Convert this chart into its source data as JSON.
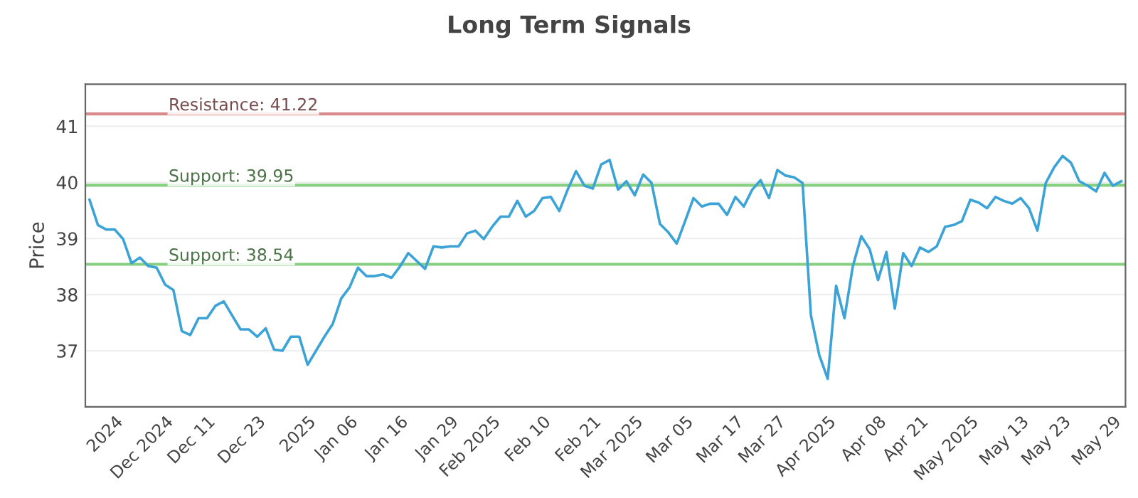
{
  "chart_data": {
    "type": "line",
    "title": "Long Term Signals",
    "ylabel": "Price",
    "categories": [
      null,
      null,
      null,
      "2024",
      null,
      null,
      null,
      null,
      null,
      "Dec 2024",
      null,
      null,
      null,
      null,
      "Dec 11",
      null,
      null,
      null,
      null,
      null,
      "Dec 23",
      null,
      null,
      null,
      null,
      null,
      "2025",
      null,
      null,
      null,
      null,
      "Jan 06",
      null,
      null,
      null,
      null,
      null,
      "Jan 16",
      null,
      null,
      null,
      null,
      null,
      "Jan 29",
      null,
      null,
      null,
      null,
      "Feb 2025",
      null,
      null,
      null,
      null,
      null,
      "Feb 10",
      null,
      null,
      null,
      null,
      null,
      "Feb 21",
      null,
      null,
      null,
      null,
      "Mar 2025",
      null,
      null,
      null,
      null,
      null,
      "Mar 05",
      null,
      null,
      null,
      null,
      null,
      "Mar 17",
      null,
      null,
      null,
      null,
      "Mar 27",
      null,
      null,
      null,
      null,
      null,
      "Apr 2025",
      null,
      null,
      null,
      null,
      null,
      "Apr 08",
      null,
      null,
      null,
      null,
      "Apr 21",
      null,
      null,
      null,
      null,
      null,
      "May 2025",
      null,
      null,
      null,
      null,
      null,
      "May 13",
      null,
      null,
      null,
      null,
      "May 23",
      null,
      null,
      null,
      null,
      null,
      "May 29",
      null
    ],
    "series": [
      {
        "color": "#3ba3d6",
        "values": [
          39.69,
          39.24,
          39.16,
          39.16,
          38.99,
          38.56,
          38.66,
          38.51,
          38.48,
          38.18,
          38.08,
          37.35,
          37.28,
          37.58,
          37.58,
          37.8,
          37.88,
          37.63,
          37.38,
          37.38,
          37.25,
          37.4,
          37.02,
          37.0,
          37.25,
          37.25,
          36.75,
          37.0,
          37.25,
          37.48,
          37.93,
          38.13,
          38.48,
          38.33,
          38.33,
          38.36,
          38.3,
          38.5,
          38.74,
          38.6,
          38.46,
          38.86,
          38.84,
          38.86,
          38.86,
          39.09,
          39.14,
          38.99,
          39.21,
          39.39,
          39.39,
          39.67,
          39.39,
          39.49,
          39.72,
          39.74,
          39.49,
          39.87,
          40.2,
          39.94,
          39.89,
          40.32,
          40.4,
          39.87,
          40.02,
          39.77,
          40.14,
          39.99,
          39.26,
          39.11,
          38.91,
          39.31,
          39.72,
          39.57,
          39.62,
          39.62,
          39.42,
          39.74,
          39.57,
          39.87,
          40.04,
          39.72,
          40.22,
          40.12,
          40.09,
          39.99,
          37.63,
          36.92,
          36.5,
          38.16,
          37.58,
          38.51,
          39.04,
          38.81,
          38.26,
          38.76,
          37.75,
          38.74,
          38.51,
          38.84,
          38.76,
          38.86,
          39.21,
          39.24,
          39.31,
          39.69,
          39.64,
          39.54,
          39.74,
          39.67,
          39.62,
          39.72,
          39.54,
          39.14,
          39.99,
          40.27,
          40.47,
          40.35,
          40.02,
          39.94,
          39.84,
          40.17,
          39.94,
          40.02
        ]
      }
    ],
    "ylim": [
      36,
      41.75
    ],
    "yticks": [
      37,
      38,
      39,
      40,
      41
    ],
    "grid": "y",
    "marker": "none",
    "line_style": "solid",
    "ref_lines": [
      {
        "axis": "y",
        "value": 41.22,
        "label": "Resistance: 41.22",
        "color": "#d98a8a"
      },
      {
        "axis": "y",
        "value": 39.95,
        "label": "Support: 39.95",
        "color": "#86cf80"
      },
      {
        "axis": "y",
        "value": 38.54,
        "label": "Support: 38.54",
        "color": "#86cf80"
      }
    ]
  }
}
